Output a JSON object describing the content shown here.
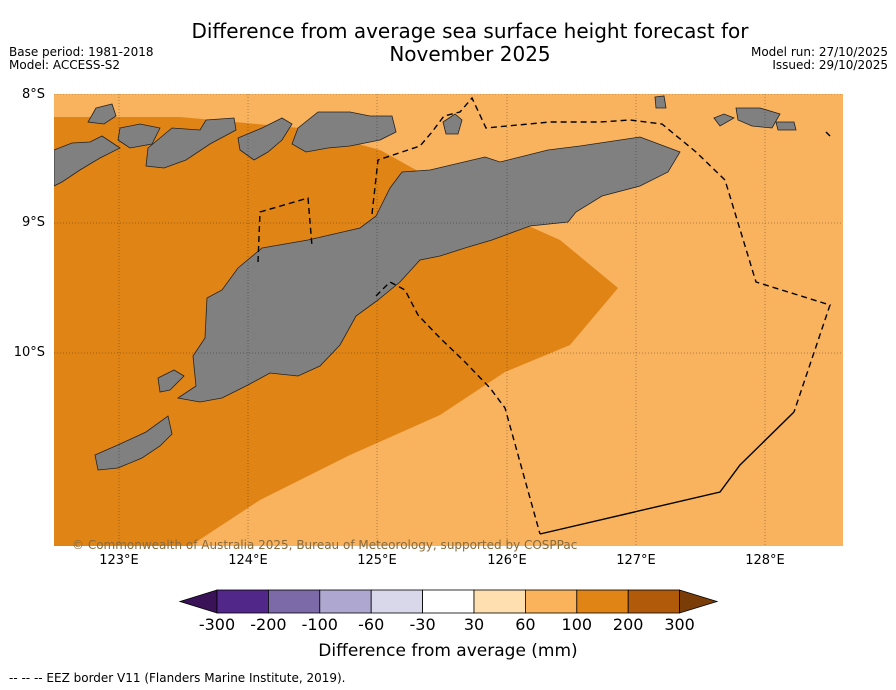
{
  "title_line1": "Difference from average sea surface height forecast for",
  "title_line2": "November 2025",
  "base_period": "Base period: 1981-2018",
  "model": "Model: ACCESS-S2",
  "model_run": "Model run: 27/10/2025",
  "issued": "Issued: 29/10/2025",
  "lat_labels": [
    "8°S",
    "9°S",
    "10°S"
  ],
  "lon_labels": [
    "123°E",
    "124°E",
    "125°E",
    "126°E",
    "127°E",
    "128°E"
  ],
  "copyright": "© Commonwealth of Australia 2025, Bureau of Meteorology, supported by COSPPac",
  "colorbar": {
    "label": "Difference from average (mm)",
    "ticks": [
      "-300",
      "-200",
      "-100",
      "-60",
      "-30",
      "30",
      "60",
      "100",
      "200",
      "300"
    ],
    "colors": [
      "#3a1258",
      "#52278a",
      "#7c6aa8",
      "#aea8d0",
      "#d8d8ea",
      "#ffffff",
      "#fddfb0",
      "#fab35a",
      "#e08416",
      "#b05a0a",
      "#7a3d08"
    ]
  },
  "footnote": "--  --  -- EEZ border V11 (Flanders Marine Institute, 2019).",
  "map_colors": {
    "land": "#808080",
    "band_60_100": "#f9b25d",
    "band_100_200": "#e08415"
  }
}
